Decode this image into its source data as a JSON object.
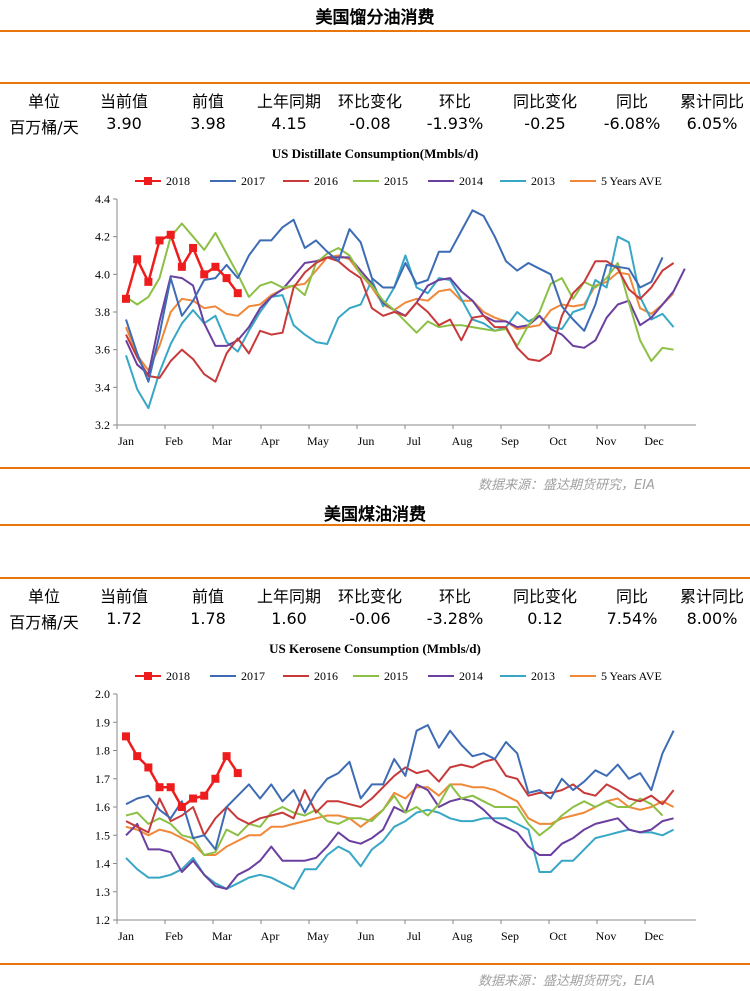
{
  "sections": [
    {
      "title": "美国馏分油消费",
      "headers": [
        "单位",
        "当前值",
        "前值",
        "上年同期",
        "环比变化",
        "环比",
        "同比变化",
        "同比",
        "累计同比"
      ],
      "values": [
        "百万桶/天",
        "3.90",
        "3.98",
        "4.15",
        "-0.08",
        "-1.93%",
        "-0.25",
        "-6.08%",
        "6.05%"
      ],
      "source": "数据来源：盛达期货研究，EIA"
    },
    {
      "title": "美国煤油消费",
      "headers": [
        "单位",
        "当前值",
        "前值",
        "上年同期",
        "环比变化",
        "环比",
        "同比变化",
        "同比",
        "累计同比"
      ],
      "values": [
        "百万桶/天",
        "1.72",
        "1.78",
        "1.60",
        "-0.06",
        "-3.28%",
        "0.12",
        "7.54%",
        "8.00%"
      ],
      "source": "数据来源：盛达期货研究，EIA"
    }
  ],
  "chart_data": [
    {
      "type": "line",
      "title": "US Distillate Consumption(Mmbls/d)",
      "x_ticks": [
        "Jan",
        "Feb",
        "Mar",
        "Apr",
        "May",
        "Jun",
        "Jul",
        "Aug",
        "Sep",
        "Oct",
        "Nov",
        "Dec"
      ],
      "ylim": [
        3.2,
        4.4
      ],
      "y_ticks": [
        "3.2",
        "3.4",
        "3.6",
        "3.8",
        "4.0",
        "4.2",
        "4.4"
      ],
      "grid": false,
      "legend": "top",
      "series": [
        {
          "name": "2018",
          "color": "#ee1c1c",
          "marker": "square",
          "values": [
            3.87,
            4.08,
            3.96,
            4.18,
            4.21,
            4.04,
            4.14,
            4.0,
            4.04,
            3.98,
            3.9
          ]
        },
        {
          "name": "2017",
          "color": "#3d6cb5",
          "values": [
            3.76,
            3.58,
            3.43,
            3.68,
            3.98,
            3.78,
            3.86,
            3.97,
            3.98,
            4.05,
            3.98,
            4.1,
            4.18,
            4.18,
            4.25,
            4.29,
            4.14,
            4.18,
            4.12,
            4.07,
            4.24,
            4.17,
            3.98,
            3.93,
            3.93,
            4.06,
            3.95,
            3.97,
            4.12,
            4.12,
            4.23,
            4.34,
            4.31,
            4.2,
            4.07,
            4.02,
            4.06,
            4.03,
            4.0,
            3.83,
            3.76,
            3.7,
            3.84,
            4.05,
            4.04,
            4.03,
            3.93,
            3.96,
            4.09
          ]
        },
        {
          "name": "2016",
          "color": "#c8393a",
          "values": [
            3.68,
            3.56,
            3.46,
            3.45,
            3.54,
            3.6,
            3.55,
            3.47,
            3.43,
            3.58,
            3.66,
            3.58,
            3.7,
            3.68,
            3.69,
            3.93,
            4.01,
            4.06,
            4.09,
            4.07,
            4.02,
            3.98,
            3.82,
            3.78,
            3.8,
            3.78,
            3.85,
            3.8,
            3.73,
            3.76,
            3.65,
            3.77,
            3.78,
            3.72,
            3.72,
            3.61,
            3.55,
            3.54,
            3.58,
            3.78,
            3.9,
            3.96,
            4.07,
            4.07,
            4.03,
            3.92,
            3.87,
            3.93,
            4.02,
            4.06
          ]
        },
        {
          "name": "2015",
          "color": "#8cc045",
          "values": [
            3.88,
            3.84,
            3.88,
            3.98,
            4.2,
            4.27,
            4.2,
            4.13,
            4.22,
            4.11,
            4.0,
            3.88,
            3.94,
            3.96,
            3.93,
            3.94,
            3.89,
            4.06,
            4.11,
            4.14,
            4.1,
            4.0,
            3.94,
            3.86,
            3.81,
            3.75,
            3.69,
            3.75,
            3.72,
            3.73,
            3.73,
            3.72,
            3.71,
            3.7,
            3.71,
            3.62,
            3.73,
            3.8,
            3.95,
            3.98,
            3.87,
            3.96,
            3.93,
            3.98,
            4.06,
            3.85,
            3.65,
            3.54,
            3.61,
            3.6
          ]
        },
        {
          "name": "2014",
          "color": "#6b3fa0",
          "values": [
            3.65,
            3.52,
            3.47,
            3.75,
            3.99,
            3.98,
            3.94,
            3.74,
            3.62,
            3.62,
            3.65,
            3.72,
            3.82,
            3.88,
            3.92,
            3.99,
            4.06,
            4.07,
            4.09,
            4.09,
            4.09,
            4.02,
            3.95,
            3.85,
            3.81,
            3.78,
            3.85,
            3.94,
            3.97,
            3.98,
            3.91,
            3.86,
            3.78,
            3.75,
            3.75,
            3.72,
            3.73,
            3.78,
            3.71,
            3.68,
            3.62,
            3.61,
            3.65,
            3.77,
            3.84,
            3.86,
            3.73,
            3.77,
            3.84,
            3.91,
            4.03
          ]
        },
        {
          "name": "2013",
          "color": "#38a7c5",
          "values": [
            3.57,
            3.39,
            3.29,
            3.48,
            3.63,
            3.74,
            3.81,
            3.74,
            3.78,
            3.64,
            3.59,
            3.7,
            3.8,
            3.88,
            3.89,
            3.73,
            3.68,
            3.64,
            3.63,
            3.77,
            3.82,
            3.84,
            3.97,
            3.83,
            3.93,
            4.1,
            3.93,
            3.9,
            3.98,
            3.97,
            3.87,
            3.76,
            3.74,
            3.7,
            3.72,
            3.8,
            3.75,
            3.78,
            3.72,
            3.71,
            3.8,
            3.82,
            3.97,
            3.93,
            4.2,
            4.17,
            3.88,
            3.76,
            3.79,
            3.72
          ]
        },
        {
          "name": "5 Years AVE",
          "color": "#f0883a",
          "values": [
            3.72,
            3.57,
            3.49,
            3.62,
            3.8,
            3.87,
            3.86,
            3.82,
            3.83,
            3.79,
            3.78,
            3.83,
            3.84,
            3.89,
            3.92,
            3.94,
            3.95,
            4.02,
            4.09,
            4.1,
            4.08,
            4.0,
            3.93,
            3.84,
            3.81,
            3.85,
            3.87,
            3.86,
            3.91,
            3.92,
            3.86,
            3.86,
            3.8,
            3.77,
            3.75,
            3.71,
            3.72,
            3.73,
            3.81,
            3.84,
            3.83,
            3.84,
            3.94,
            3.96,
            4.01,
            4.0,
            3.82,
            3.79,
            3.84,
            3.9
          ]
        }
      ]
    },
    {
      "type": "line",
      "title": "US Kerosene Consumption (Mmbls/d)",
      "x_ticks": [
        "Jan",
        "Feb",
        "Mar",
        "Apr",
        "May",
        "Jun",
        "Jul",
        "Aug",
        "Sep",
        "Oct",
        "Nov",
        "Dec"
      ],
      "ylim": [
        1.2,
        2.0
      ],
      "y_ticks": [
        "1.2",
        "1.3",
        "1.4",
        "1.5",
        "1.6",
        "1.7",
        "1.8",
        "1.9",
        "2.0"
      ],
      "grid": false,
      "legend": "top",
      "series": [
        {
          "name": "2018",
          "color": "#ee1c1c",
          "marker": "square",
          "values": [
            1.85,
            1.78,
            1.74,
            1.67,
            1.67,
            1.6,
            1.63,
            1.64,
            1.7,
            1.78,
            1.72
          ]
        },
        {
          "name": "2017",
          "color": "#3d6cb5",
          "values": [
            1.61,
            1.63,
            1.64,
            1.59,
            1.56,
            1.62,
            1.49,
            1.5,
            1.45,
            1.6,
            1.64,
            1.68,
            1.63,
            1.68,
            1.62,
            1.66,
            1.58,
            1.65,
            1.7,
            1.72,
            1.76,
            1.63,
            1.68,
            1.68,
            1.77,
            1.71,
            1.87,
            1.89,
            1.81,
            1.87,
            1.82,
            1.78,
            1.79,
            1.77,
            1.83,
            1.79,
            1.65,
            1.66,
            1.63,
            1.7,
            1.66,
            1.69,
            1.73,
            1.71,
            1.75,
            1.7,
            1.72,
            1.66,
            1.79,
            1.87
          ]
        },
        {
          "name": "2016",
          "color": "#c8393a",
          "values": [
            1.55,
            1.53,
            1.51,
            1.63,
            1.55,
            1.57,
            1.6,
            1.5,
            1.56,
            1.6,
            1.56,
            1.54,
            1.56,
            1.57,
            1.58,
            1.56,
            1.66,
            1.58,
            1.62,
            1.62,
            1.61,
            1.6,
            1.63,
            1.67,
            1.71,
            1.74,
            1.72,
            1.73,
            1.69,
            1.74,
            1.75,
            1.74,
            1.76,
            1.77,
            1.71,
            1.7,
            1.64,
            1.65,
            1.65,
            1.66,
            1.68,
            1.65,
            1.64,
            1.68,
            1.66,
            1.63,
            1.62,
            1.64,
            1.61,
            1.66
          ]
        },
        {
          "name": "2015",
          "color": "#8cc045",
          "values": [
            1.57,
            1.58,
            1.54,
            1.56,
            1.54,
            1.5,
            1.49,
            1.43,
            1.44,
            1.52,
            1.5,
            1.54,
            1.53,
            1.58,
            1.6,
            1.58,
            1.57,
            1.59,
            1.55,
            1.54,
            1.56,
            1.56,
            1.55,
            1.59,
            1.64,
            1.58,
            1.6,
            1.57,
            1.61,
            1.68,
            1.63,
            1.64,
            1.62,
            1.6,
            1.6,
            1.6,
            1.54,
            1.5,
            1.53,
            1.57,
            1.6,
            1.62,
            1.6,
            1.62,
            1.6,
            1.6,
            1.63,
            1.61,
            1.57
          ]
        },
        {
          "name": "2014",
          "color": "#6b3fa0",
          "values": [
            1.5,
            1.54,
            1.45,
            1.45,
            1.44,
            1.37,
            1.41,
            1.36,
            1.32,
            1.31,
            1.36,
            1.38,
            1.41,
            1.46,
            1.41,
            1.41,
            1.41,
            1.42,
            1.46,
            1.51,
            1.48,
            1.47,
            1.49,
            1.52,
            1.6,
            1.58,
            1.68,
            1.66,
            1.6,
            1.62,
            1.63,
            1.62,
            1.59,
            1.55,
            1.53,
            1.51,
            1.46,
            1.43,
            1.43,
            1.47,
            1.49,
            1.52,
            1.54,
            1.55,
            1.56,
            1.52,
            1.51,
            1.52,
            1.55,
            1.56
          ]
        },
        {
          "name": "2013",
          "color": "#38a7c5",
          "values": [
            1.42,
            1.38,
            1.35,
            1.35,
            1.36,
            1.38,
            1.42,
            1.36,
            1.33,
            1.31,
            1.33,
            1.35,
            1.36,
            1.35,
            1.33,
            1.31,
            1.38,
            1.38,
            1.43,
            1.46,
            1.44,
            1.39,
            1.45,
            1.48,
            1.53,
            1.55,
            1.58,
            1.59,
            1.58,
            1.56,
            1.55,
            1.55,
            1.56,
            1.56,
            1.56,
            1.54,
            1.52,
            1.37,
            1.37,
            1.41,
            1.41,
            1.45,
            1.49,
            1.5,
            1.51,
            1.52,
            1.51,
            1.51,
            1.5,
            1.52
          ]
        },
        {
          "name": "5 Years AVE",
          "color": "#f0883a",
          "values": [
            1.53,
            1.52,
            1.5,
            1.52,
            1.51,
            1.49,
            1.47,
            1.43,
            1.43,
            1.46,
            1.48,
            1.5,
            1.5,
            1.53,
            1.53,
            1.54,
            1.55,
            1.56,
            1.57,
            1.57,
            1.56,
            1.53,
            1.56,
            1.59,
            1.65,
            1.63,
            1.67,
            1.67,
            1.64,
            1.68,
            1.68,
            1.67,
            1.67,
            1.66,
            1.64,
            1.62,
            1.56,
            1.54,
            1.54,
            1.56,
            1.57,
            1.58,
            1.6,
            1.62,
            1.63,
            1.6,
            1.59,
            1.6,
            1.62,
            1.6
          ]
        }
      ]
    }
  ]
}
